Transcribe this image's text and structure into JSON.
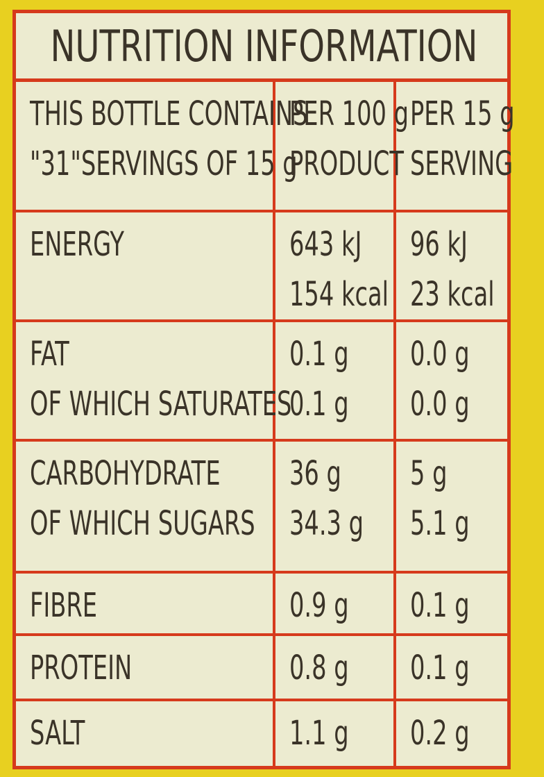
{
  "title": "NUTRITION INFORMATION",
  "header": {
    "label": [
      "THIS BOTTLE CONTAINS",
      "\"31\"SERVINGS OF 15 g"
    ],
    "per100": [
      "PER 100 g",
      "PRODUCT"
    ],
    "perServing": [
      "PER 15 g",
      "SERVING"
    ]
  },
  "rows": [
    {
      "label": [
        "ENERGY"
      ],
      "per100": [
        "643 kJ",
        "154 kcal"
      ],
      "perServing": [
        "96 kJ",
        "23 kcal"
      ]
    },
    {
      "label": [
        "FAT",
        "OF WHICH SATURATES"
      ],
      "per100": [
        "0.1 g",
        "0.1 g"
      ],
      "perServing": [
        "0.0 g",
        "0.0 g"
      ]
    },
    {
      "label": [
        "CARBOHYDRATE",
        "OF WHICH SUGARS"
      ],
      "per100": [
        "36 g",
        "34.3 g"
      ],
      "perServing": [
        "5 g",
        "5.1 g"
      ]
    },
    {
      "label": [
        "FIBRE"
      ],
      "per100": [
        "0.9 g"
      ],
      "perServing": [
        "0.1 g"
      ]
    },
    {
      "label": [
        "PROTEIN"
      ],
      "per100": [
        "0.8 g"
      ],
      "perServing": [
        "0.1 g"
      ]
    },
    {
      "label": [
        "SALT"
      ],
      "per100": [
        "1.1 g"
      ],
      "perServing": [
        "0.2 g"
      ]
    }
  ],
  "colors": {
    "border": "#d63a1c",
    "background": "#ecebd0",
    "text": "#3a3328",
    "packaging": "#e8d020"
  }
}
